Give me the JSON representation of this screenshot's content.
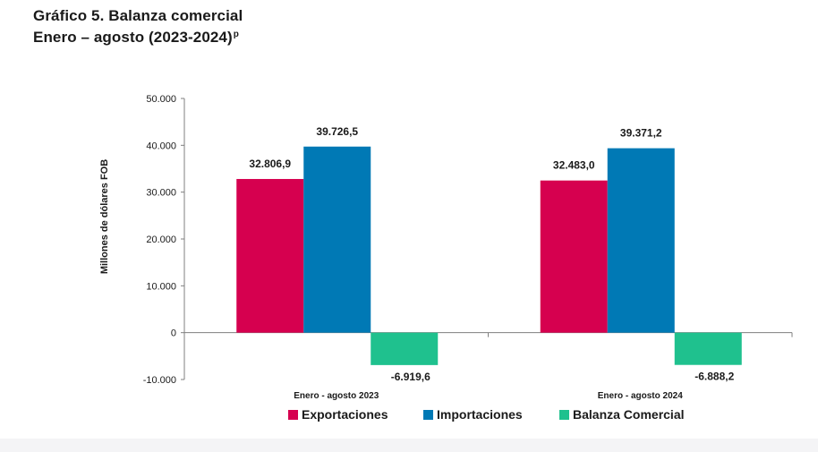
{
  "header": {
    "title": "Gráfico 5. Balanza comercial",
    "subtitle": "Enero – agosto (2023-2024)",
    "subtitle_sup": "p"
  },
  "chart_data": {
    "type": "bar",
    "categories": [
      "Enero - agosto 2023",
      "Enero - agosto 2024"
    ],
    "series": [
      {
        "name": "Exportaciones",
        "color": "#d6004f",
        "values": [
          32806.9,
          32483.0
        ],
        "labels": [
          "32.806,9",
          "32.483,0"
        ]
      },
      {
        "name": "Importaciones",
        "color": "#0079b5",
        "values": [
          39726.5,
          39371.2
        ],
        "labels": [
          "39.726,5",
          "39.371,2"
        ]
      },
      {
        "name": "Balanza Comercial",
        "color": "#1fc18e",
        "values": [
          -6919.6,
          -6888.2
        ],
        "labels": [
          "-6.919,6",
          "-6.888,2"
        ]
      }
    ],
    "ylabel": "Millones de dólares FOB",
    "ylim": [
      -10000,
      50000
    ],
    "yticks": [
      -10000,
      0,
      10000,
      20000,
      30000,
      40000,
      50000
    ],
    "ytick_labels": [
      "-10.000",
      "0",
      "10.000",
      "20.000",
      "30.000",
      "40.000",
      "50.000"
    ],
    "grid": false,
    "legend_position": "bottom"
  }
}
